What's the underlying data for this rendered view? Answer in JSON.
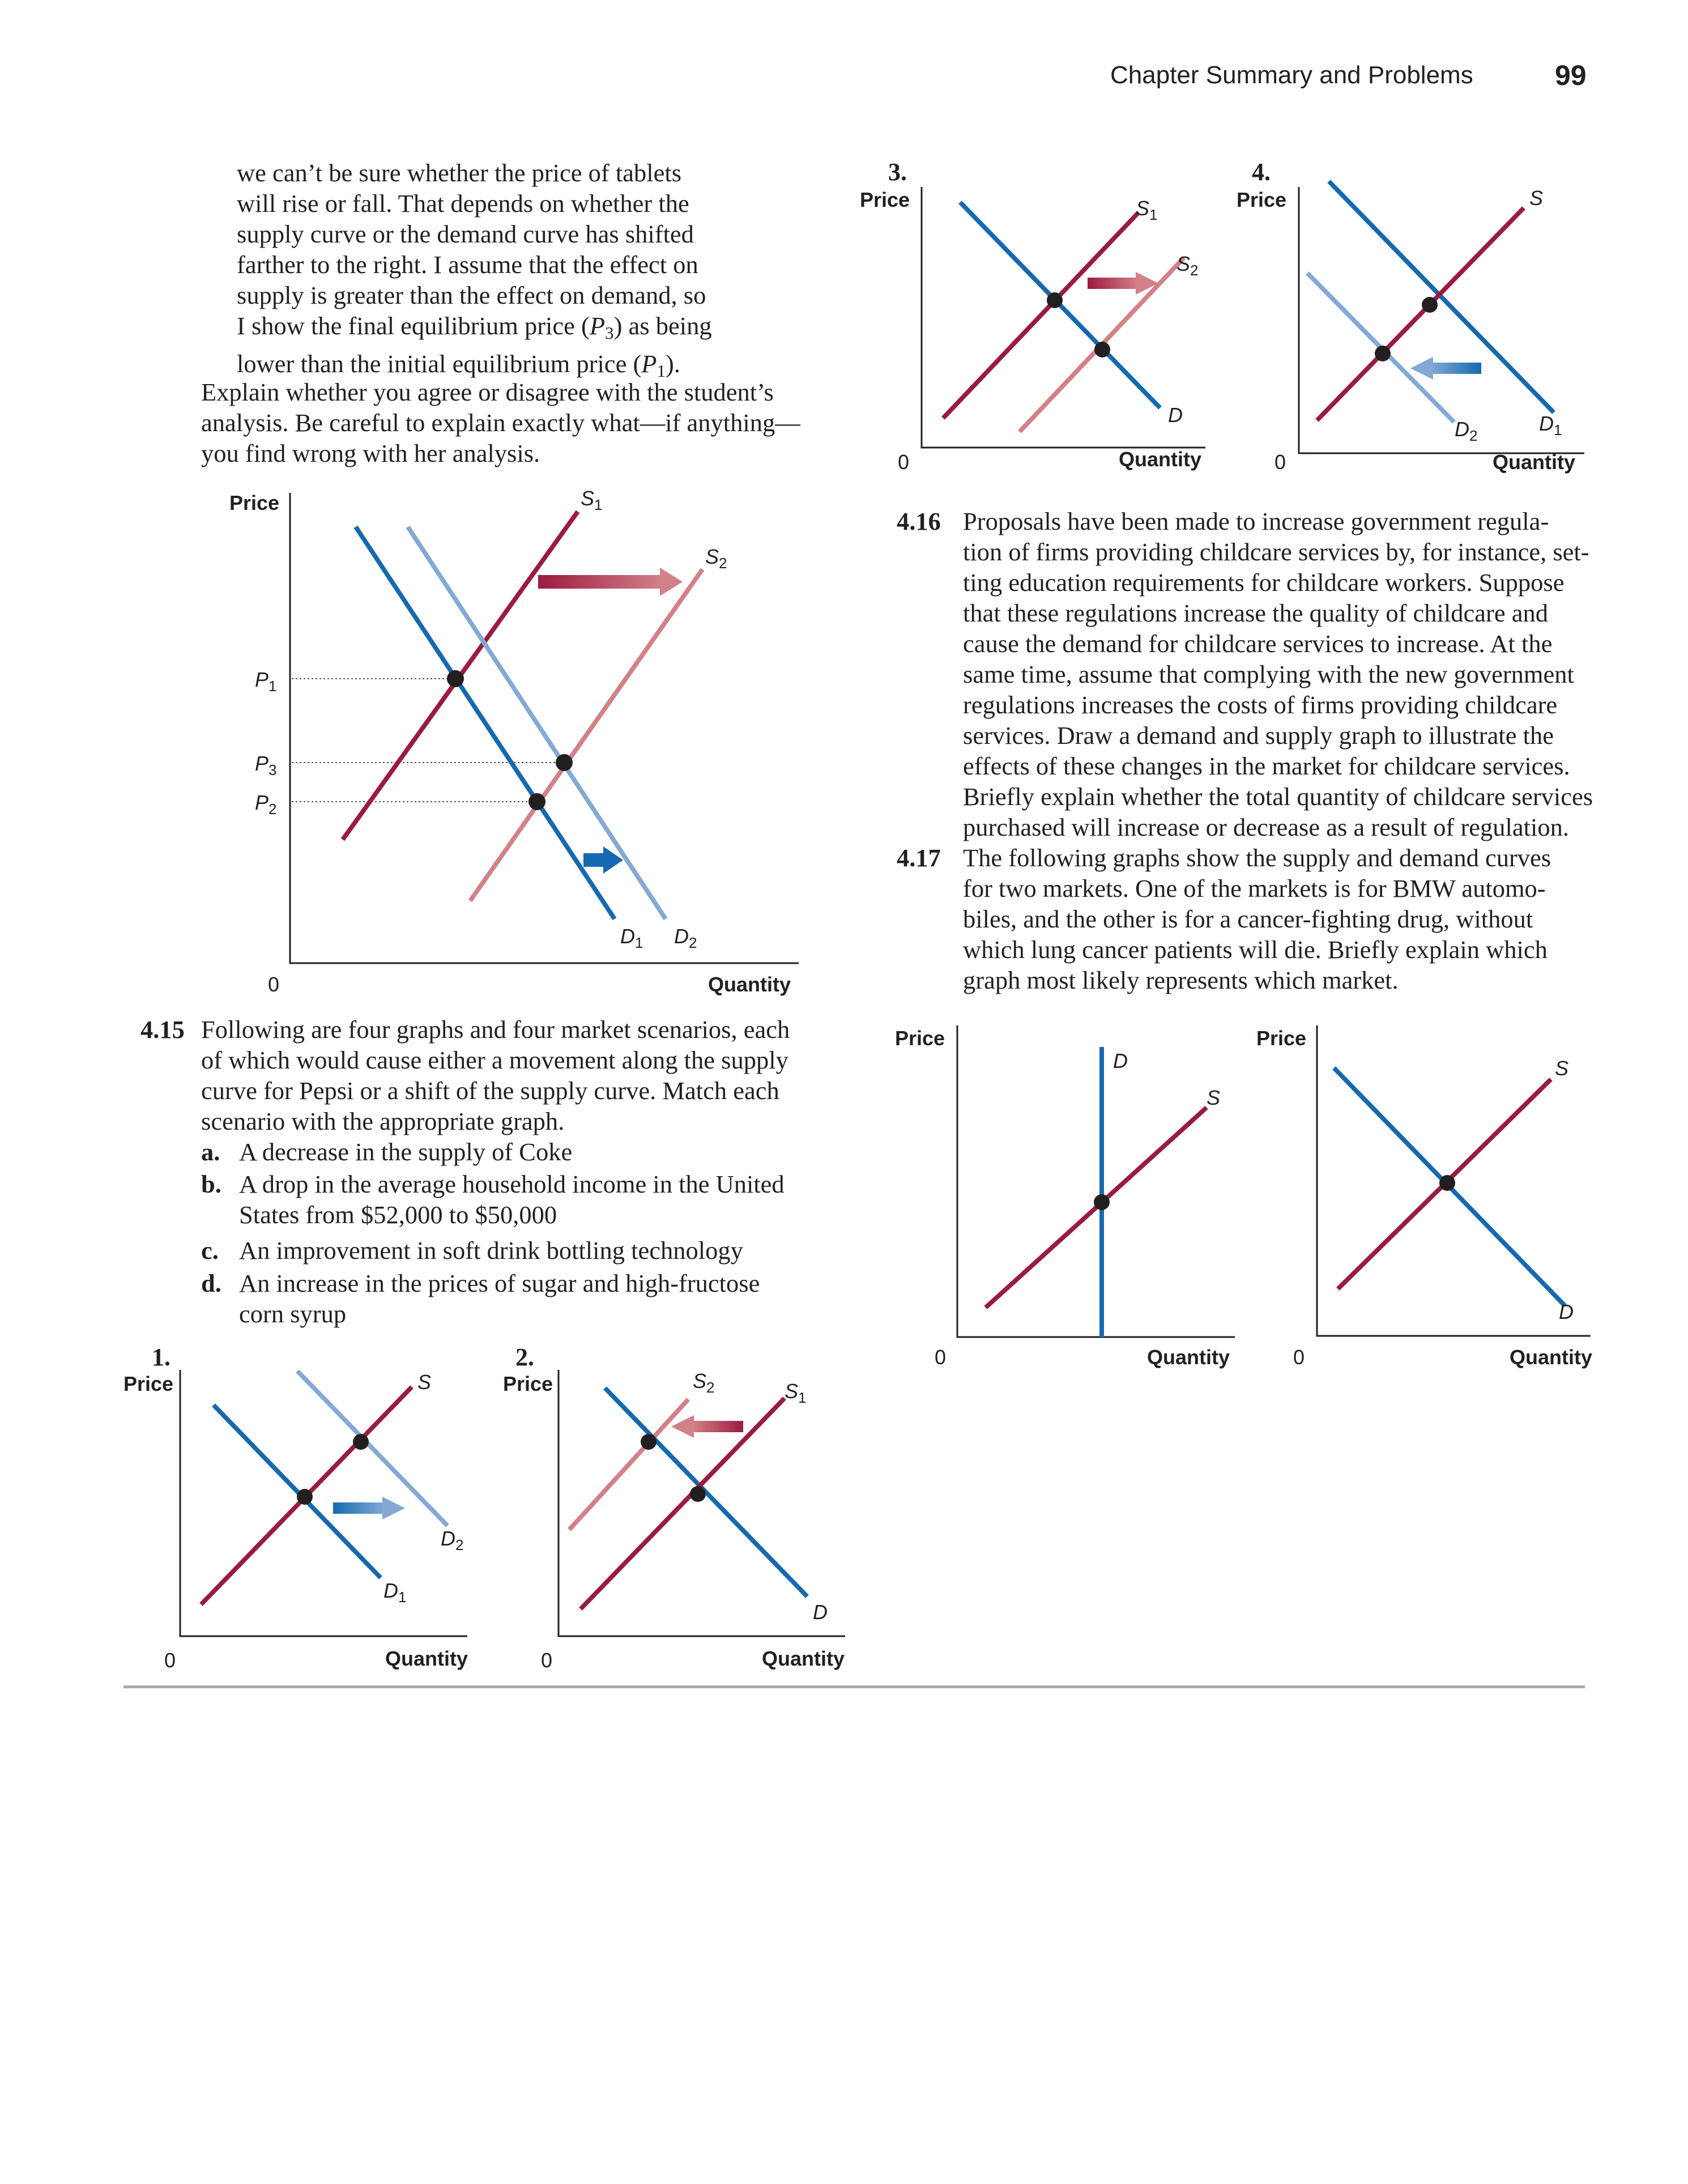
{
  "header": {
    "running_title": "Chapter Summary and Problems",
    "page_number": "99"
  },
  "student_text": {
    "lines": [
      "we can’t be sure whether the price of tablets",
      "will rise or fall. That depends on whether the",
      "supply curve or the demand curve has shifted",
      "farther to the right. I assume that the effect on",
      "supply is greater than the effect on demand, so"
    ],
    "line6_a": "I show the final equilibrium price (",
    "line6_p": "P",
    "line6_sub": "3",
    "line6_b": ") as being",
    "line7_a": "lower than the initial equilibrium price (",
    "line7_p": "P",
    "line7_sub": "1",
    "line7_b": ")."
  },
  "explain_text": [
    "Explain whether you agree or disagree with the student’s",
    "analysis. Be careful to explain exactly what—if anything—",
    "you find wrong with her analysis."
  ],
  "main_graph": {
    "y_axis": "Price",
    "x_axis": "Quantity",
    "origin": "0",
    "p1": "P",
    "p1_sub": "1",
    "p3": "P",
    "p3_sub": "3",
    "p2": "P",
    "p2_sub": "2",
    "s1": "S",
    "s1_sub": "1",
    "s2": "S",
    "s2_sub": "2",
    "d1": "D",
    "d1_sub": "1",
    "d2": "D",
    "d2_sub": "2"
  },
  "problem_4_15": {
    "number": "4.15",
    "lines": [
      "Following are four graphs and four market scenarios, each",
      "of which would cause either a movement along the supply",
      "curve for Pepsi or a shift of the supply curve. Match each",
      "scenario with the appropriate graph."
    ],
    "options": [
      {
        "letter": "a.",
        "lines": [
          "A decrease in the supply of Coke"
        ]
      },
      {
        "letter": "b.",
        "lines": [
          "A drop in the average household income in the United",
          "States from $52,000 to $50,000"
        ]
      },
      {
        "letter": "c.",
        "lines": [
          "An improvement in soft drink bottling technology"
        ]
      },
      {
        "letter": "d.",
        "lines": [
          "An increase in the prices of sugar and high-fructose",
          "corn syrup"
        ]
      }
    ]
  },
  "graph1": {
    "number": "1.",
    "y_axis": "Price",
    "x_axis": "Quantity",
    "origin": "0",
    "s": "S",
    "d1": "D",
    "d1_sub": "1",
    "d2": "D",
    "d2_sub": "2"
  },
  "graph2": {
    "number": "2.",
    "y_axis": "Price",
    "x_axis": "Quantity",
    "origin": "0",
    "s1": "S",
    "s1_sub": "1",
    "s2": "S",
    "s2_sub": "2",
    "d": "D"
  },
  "graph3": {
    "number": "3.",
    "y_axis": "Price",
    "x_axis": "Quantity",
    "origin": "0",
    "s1": "S",
    "s1_sub": "1",
    "s2": "S",
    "s2_sub": "2",
    "d": "D"
  },
  "graph4": {
    "number": "4.",
    "y_axis": "Price",
    "x_axis": "Quantity",
    "origin": "0",
    "s": "S",
    "d1": "D",
    "d1_sub": "1",
    "d2": "D",
    "d2_sub": "2"
  },
  "problem_4_16": {
    "number": "4.16",
    "lines": [
      "Proposals have been made to increase government regula-",
      "tion of firms providing childcare services by, for instance, set-",
      "ting education requirements for childcare workers. Suppose",
      "that these regulations increase the quality of childcare and",
      "cause the demand for childcare services to increase. At the",
      "same time, assume that complying with the new government",
      "regulations increases the costs of firms providing childcare",
      "services. Draw a demand and supply graph to illustrate the",
      "effects of these changes in the market for childcare services.",
      "Briefly explain whether the total quantity of childcare services",
      "purchased will increase or decrease as a result of regulation."
    ]
  },
  "problem_4_17": {
    "number": "4.17",
    "lines": [
      "The following graphs show the supply and demand curves",
      "for two markets. One of the markets is for BMW automo-",
      "biles, and the other is for a cancer-fighting drug, without",
      "which lung cancer patients will die. Briefly explain which",
      "graph most likely represents which market."
    ]
  },
  "graph_vertical": {
    "y_axis": "Price",
    "x_axis": "Quantity",
    "origin": "0",
    "d": "D",
    "s": "S"
  },
  "graph_normal": {
    "y_axis": "Price",
    "x_axis": "Quantity",
    "origin": "0",
    "s": "S",
    "d": "D"
  },
  "colors": {
    "supply": "#9b1b3f",
    "supply_light": "#d48088",
    "demand": "#1569b0",
    "demand_light": "#83a9d6",
    "text": "#231f20",
    "rule": "#a7a9ac"
  }
}
